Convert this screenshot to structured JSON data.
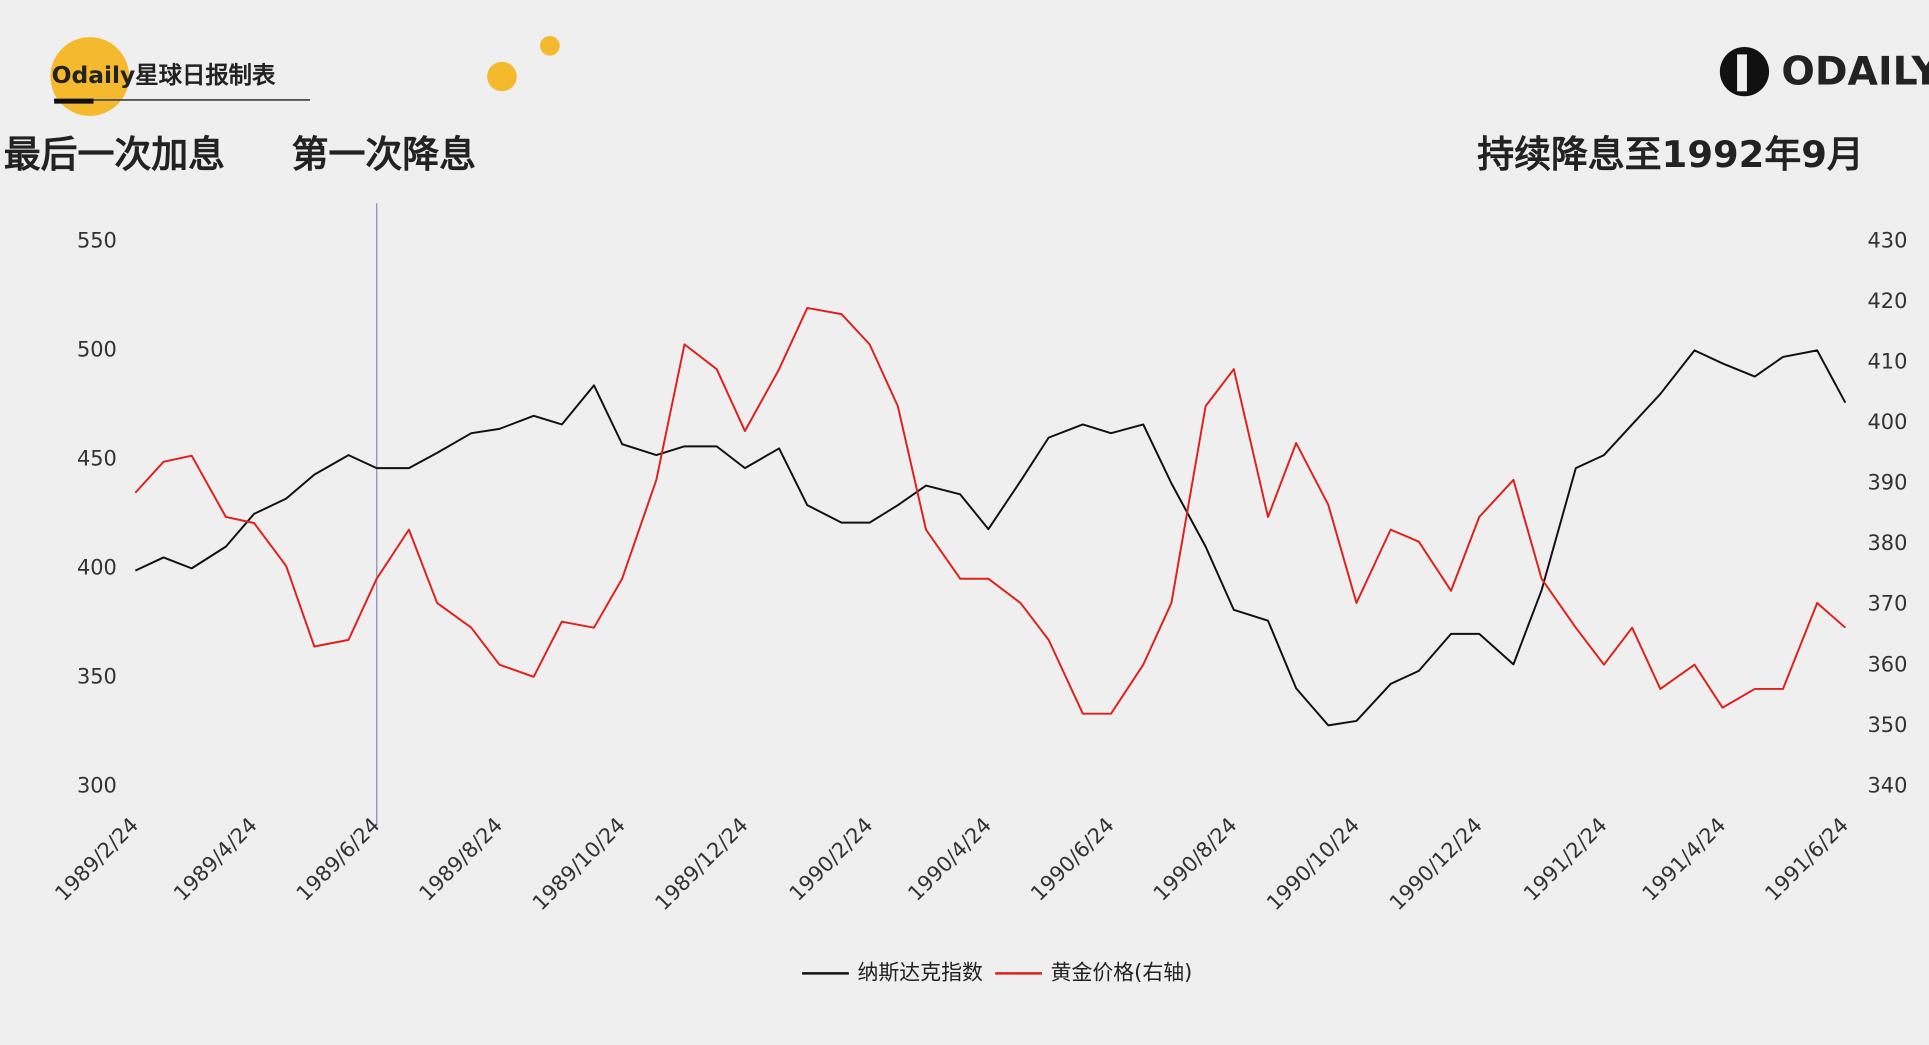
{
  "header": {
    "brand": "Odaily星球日报制表",
    "logo": "ODAILY"
  },
  "annotations": [
    "最后一次加息",
    "第一次降息",
    "持续降息至1992年9月"
  ],
  "chart_data": {
    "type": "line",
    "x": [
      "1989/2/24",
      "1989/3/10",
      "1989/3/24",
      "1989/4/10",
      "1989/4/24",
      "1989/5/10",
      "1989/5/24",
      "1989/6/10",
      "1989/6/24",
      "1989/7/10",
      "1989/7/24",
      "1989/8/10",
      "1989/8/24",
      "1989/9/10",
      "1989/9/24",
      "1989/10/10",
      "1989/10/24",
      "1989/11/10",
      "1989/11/24",
      "1989/12/10",
      "1989/12/24",
      "1990/1/10",
      "1990/1/24",
      "1990/2/10",
      "1990/2/24",
      "1990/3/10",
      "1990/3/24",
      "1990/4/10",
      "1990/4/24",
      "1990/5/10",
      "1990/5/24",
      "1990/6/10",
      "1990/6/24",
      "1990/7/10",
      "1990/7/24",
      "1990/8/10",
      "1990/8/24",
      "1990/9/10",
      "1990/9/24",
      "1990/10/10",
      "1990/10/24",
      "1990/11/10",
      "1990/11/24",
      "1990/12/10",
      "1990/12/24",
      "1991/1/10",
      "1991/1/24",
      "1991/2/10",
      "1991/2/24",
      "1991/3/10",
      "1991/3/24",
      "1991/4/10",
      "1991/4/24",
      "1991/5/10",
      "1991/5/24",
      "1991/6/10",
      "1991/6/24"
    ],
    "series": [
      {
        "name": "纳斯达克指数",
        "color": "#111111",
        "axis": "y",
        "values": [
          399,
          405,
          400,
          410,
          425,
          432,
          443,
          452,
          446,
          446,
          453,
          462,
          464,
          470,
          466,
          484,
          457,
          452,
          456,
          456,
          446,
          455,
          429,
          421,
          421,
          429,
          438,
          434,
          418,
          440,
          460,
          466,
          462,
          466,
          439,
          410,
          381,
          376,
          345,
          328,
          330,
          347,
          353,
          370,
          370,
          356,
          390,
          446,
          452,
          466,
          480,
          500,
          494,
          488,
          497,
          500,
          476
        ]
      },
      {
        "name": "黄金价格(右轴)",
        "color": "#e0201b",
        "axis": "y2",
        "values": [
          388.5,
          393.6,
          394.6,
          384.5,
          383.5,
          376.4,
          363.1,
          364.2,
          374.3,
          382.4,
          370.3,
          366.2,
          360.1,
          358.1,
          367.2,
          366.2,
          374.3,
          390.6,
          413,
          408.9,
          398.7,
          408.9,
          419,
          418,
          413,
          402.8,
          382.4,
          374.3,
          374.3,
          370.3,
          364.2,
          352,
          352,
          360.1,
          370.3,
          402.8,
          408.9,
          384.5,
          396.7,
          386.5,
          370.3,
          382.4,
          380.4,
          372.3,
          384.5,
          390.6,
          374.3,
          366.2,
          360.1,
          366.2,
          356.1,
          360.1,
          353,
          356.1,
          356.1,
          370.3,
          366.2
        ]
      }
    ],
    "xlim": [
      "1989/2/24",
      "1991/6/24"
    ],
    "xticks": [
      "1989/2/24",
      "1989/4/24",
      "1989/6/24",
      "1989/8/24",
      "1989/10/24",
      "1989/12/24",
      "1990/2/24",
      "1990/4/24",
      "1990/6/24",
      "1990/8/24",
      "1990/10/24",
      "1990/12/24",
      "1991/2/24",
      "1991/4/24",
      "1991/6/24"
    ],
    "ylim": [
      300,
      550
    ],
    "yticks": [
      300,
      350,
      400,
      450,
      500,
      550
    ],
    "y2lim": [
      340,
      430
    ],
    "y2ticks": [
      340,
      350,
      360,
      370,
      380,
      390,
      400,
      410,
      420,
      430
    ],
    "reference_line_x": "1989/6/24",
    "reference_line_color": "#8a8ab8",
    "grid": false,
    "legend": "bottom"
  }
}
